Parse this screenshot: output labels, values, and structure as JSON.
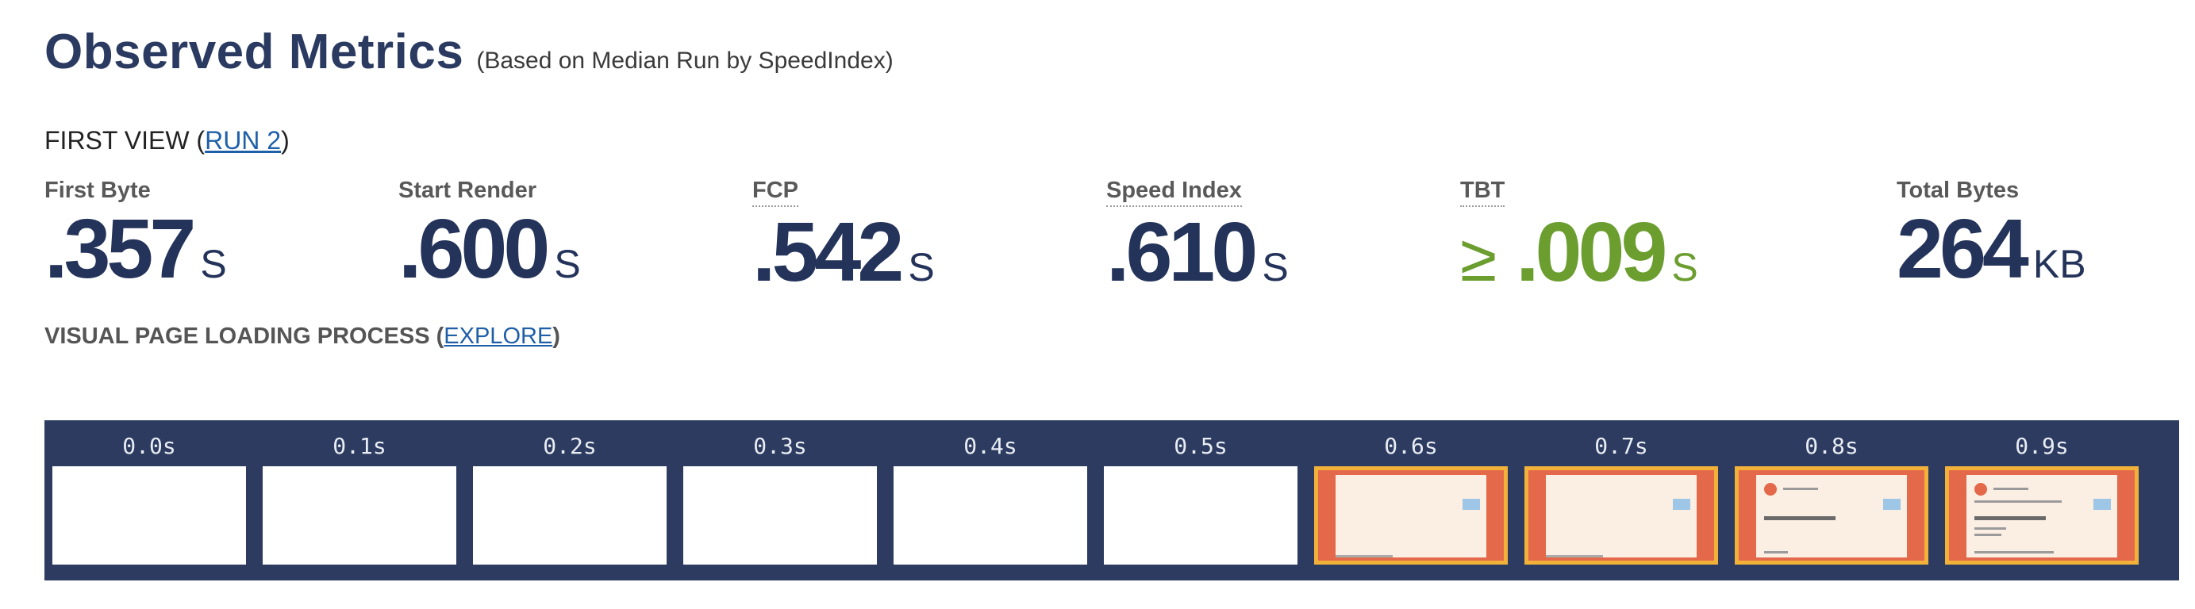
{
  "header": {
    "title": "Observed Metrics",
    "subtitle": "(Based on Median Run by SpeedIndex)"
  },
  "first_view": {
    "label": "FIRST VIEW (",
    "link": "RUN 2",
    "suffix": ")"
  },
  "metrics": [
    {
      "label": "First Byte",
      "value": ".357",
      "unit": "S",
      "prefix": ""
    },
    {
      "label": "Start Render",
      "value": ".600",
      "unit": "S",
      "prefix": ""
    },
    {
      "label": "FCP",
      "value": ".542",
      "unit": "S",
      "prefix": ""
    },
    {
      "label": "Speed Index",
      "value": ".610",
      "unit": "S",
      "prefix": ""
    },
    {
      "label": "TBT",
      "value": ".009",
      "unit": "S",
      "prefix": "≥",
      "status_color": "#6b9d2f"
    },
    {
      "label": "Total Bytes",
      "value": "264",
      "unit": "KB",
      "prefix": ""
    }
  ],
  "visual_loading": {
    "label": "VISUAL PAGE LOADING PROCESS",
    "open": " (",
    "link": "EXPLORE",
    "close": ")"
  },
  "filmstrip": [
    {
      "time": "0.0s",
      "changed": false
    },
    {
      "time": "0.1s",
      "changed": false
    },
    {
      "time": "0.2s",
      "changed": false
    },
    {
      "time": "0.3s",
      "changed": false
    },
    {
      "time": "0.4s",
      "changed": false
    },
    {
      "time": "0.5s",
      "changed": false
    },
    {
      "time": "0.6s",
      "changed": true
    },
    {
      "time": "0.7s",
      "changed": true
    },
    {
      "time": "0.8s",
      "changed": true
    },
    {
      "time": "0.9s",
      "changed": true
    }
  ],
  "colors": {
    "accent": "#2c3b5f",
    "good": "#6b9d2f",
    "link": "#1f5fa8",
    "highlight_border": "#f2b23a",
    "page_bg_thumb": "#e4684a"
  }
}
